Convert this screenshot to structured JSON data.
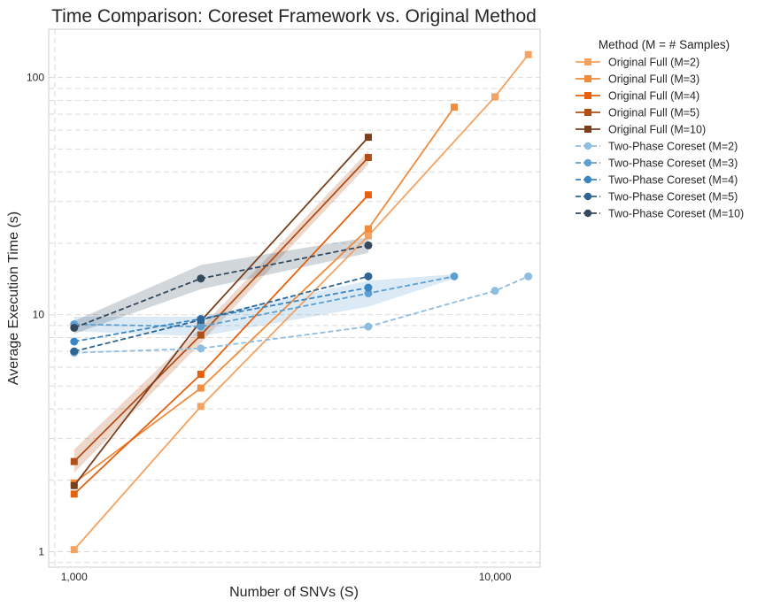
{
  "chart_data": {
    "type": "line",
    "title": "Time Comparison: Coreset Framework vs. Original Method",
    "xlabel": "Number of SNVs (S)",
    "ylabel": "Average Execution Time (s)",
    "xscale": "log",
    "yscale": "log",
    "xlim": [
      870,
      12800
    ],
    "ylim": [
      0.86,
      160
    ],
    "xticks": [
      1000,
      10000
    ],
    "xtick_labels": [
      "1,000",
      "10,000"
    ],
    "yticks": [
      1,
      10,
      100
    ],
    "ytick_labels": [
      "1",
      "10",
      "100"
    ],
    "grid": true,
    "legend": {
      "title": "Method (M = # Samples)",
      "placement": "outside-right"
    },
    "series": [
      {
        "name": "Original Full (M=2)",
        "color": "#f4a261",
        "marker": "square",
        "dash": false,
        "x": [
          1000,
          2000,
          5000,
          10000,
          12000
        ],
        "y": [
          1.02,
          4.1,
          21.5,
          83,
          125
        ]
      },
      {
        "name": "Original Full (M=3)",
        "color": "#f08c3c",
        "marker": "square",
        "dash": false,
        "x": [
          1000,
          2000,
          5000,
          8000
        ],
        "y": [
          1.95,
          4.9,
          23,
          75
        ]
      },
      {
        "name": "Original Full (M=4)",
        "color": "#e6600e",
        "marker": "square",
        "dash": false,
        "x": [
          1000,
          2000,
          5000
        ],
        "y": [
          1.75,
          5.6,
          32
        ]
      },
      {
        "name": "Original Full (M=5)",
        "color": "#b24e17",
        "marker": "square",
        "dash": false,
        "x": [
          1000,
          2000,
          5000
        ],
        "y": [
          2.4,
          8.2,
          46
        ],
        "band_lo": [
          2.15,
          7.6,
          43
        ],
        "band_hi": [
          2.7,
          8.8,
          49
        ]
      },
      {
        "name": "Original Full (M=10)",
        "color": "#7a3f1c",
        "marker": "square",
        "dash": false,
        "x": [
          1000,
          2000,
          5000
        ],
        "y": [
          1.9,
          9.4,
          56
        ]
      },
      {
        "name": "Two-Phase Coreset (M=2)",
        "color": "#8fbde0",
        "marker": "circle",
        "dash": true,
        "x": [
          1000,
          2000,
          5000,
          10000,
          12000
        ],
        "y": [
          6.9,
          7.2,
          8.9,
          12.6,
          14.5
        ]
      },
      {
        "name": "Two-Phase Coreset (M=3)",
        "color": "#5e9fd1",
        "marker": "circle",
        "dash": true,
        "x": [
          1000,
          2000,
          5000,
          8000
        ],
        "y": [
          9.1,
          8.9,
          12.3,
          14.5
        ],
        "band_lo": [
          8.5,
          8.1,
          10.8,
          14.2
        ],
        "band_hi": [
          9.8,
          9.8,
          13.9,
          14.8
        ]
      },
      {
        "name": "Two-Phase Coreset (M=4)",
        "color": "#3a86c4",
        "marker": "circle",
        "dash": true,
        "x": [
          1000,
          2000,
          5000
        ],
        "y": [
          7.7,
          9.6,
          13.0
        ]
      },
      {
        "name": "Two-Phase Coreset (M=5)",
        "color": "#2d6594",
        "marker": "circle",
        "dash": true,
        "x": [
          1000,
          2000,
          5000
        ],
        "y": [
          7.0,
          9.5,
          14.5
        ]
      },
      {
        "name": "Two-Phase Coreset (M=10)",
        "color": "#34495e",
        "marker": "circle",
        "dash": true,
        "x": [
          1000,
          2000,
          5000
        ],
        "y": [
          8.8,
          14.2,
          19.6
        ],
        "band_lo": [
          8.3,
          12.8,
          18.2
        ],
        "band_hi": [
          9.4,
          16.2,
          21.2
        ]
      }
    ]
  }
}
